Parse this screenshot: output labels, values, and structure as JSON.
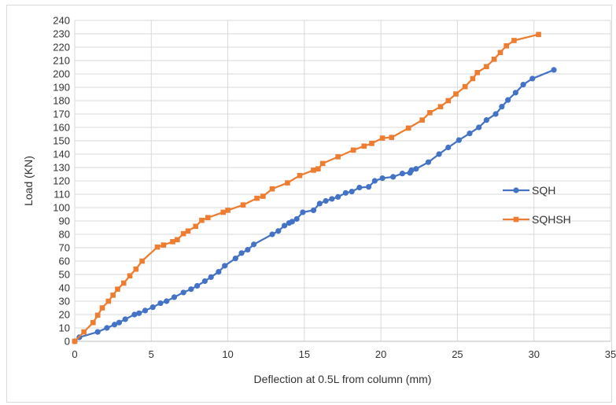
{
  "chart_data": {
    "type": "line",
    "title": "",
    "xlabel": "Deflection at 0.5L from column (mm)",
    "ylabel": "Load (KN)",
    "xlim": [
      0,
      35
    ],
    "ylim": [
      0,
      240
    ],
    "x_ticks": [
      0,
      5,
      10,
      15,
      20,
      25,
      30,
      35
    ],
    "y_ticks": [
      0,
      10,
      20,
      30,
      40,
      50,
      60,
      70,
      80,
      90,
      100,
      110,
      120,
      130,
      140,
      150,
      160,
      170,
      180,
      190,
      200,
      210,
      220,
      230,
      240
    ],
    "grid": true,
    "legend_position": "right",
    "series": [
      {
        "name": "SQH",
        "color": "#4472c4",
        "marker": "circle",
        "points": [
          [
            0,
            0
          ],
          [
            0.3,
            3
          ],
          [
            1.5,
            7
          ],
          [
            2.1,
            10
          ],
          [
            2.6,
            12.5
          ],
          [
            2.9,
            14
          ],
          [
            3.3,
            16.5
          ],
          [
            3.9,
            20
          ],
          [
            4.2,
            21
          ],
          [
            4.6,
            23
          ],
          [
            5.1,
            25.5
          ],
          [
            5.6,
            28.5
          ],
          [
            6,
            30
          ],
          [
            6.5,
            33
          ],
          [
            7.1,
            36.5
          ],
          [
            7.6,
            39
          ],
          [
            8,
            41.5
          ],
          [
            8.5,
            45
          ],
          [
            8.9,
            48
          ],
          [
            9.4,
            52
          ],
          [
            9.8,
            56.5
          ],
          [
            10.5,
            62
          ],
          [
            10.9,
            66
          ],
          [
            11.3,
            68.5
          ],
          [
            11.7,
            72.5
          ],
          [
            12.9,
            80
          ],
          [
            13.3,
            82.5
          ],
          [
            13.7,
            86.5
          ],
          [
            14,
            88.5
          ],
          [
            14.2,
            89.5
          ],
          [
            14.5,
            91.5
          ],
          [
            14.9,
            96.5
          ],
          [
            15.6,
            98
          ],
          [
            16,
            103
          ],
          [
            16.4,
            105
          ],
          [
            16.8,
            106.5
          ],
          [
            17.2,
            108
          ],
          [
            17.7,
            111
          ],
          [
            18.1,
            112
          ],
          [
            18.6,
            115
          ],
          [
            19.2,
            115.5
          ],
          [
            19.6,
            120
          ],
          [
            20.1,
            122
          ],
          [
            20.8,
            123
          ],
          [
            21.4,
            125.5
          ],
          [
            21.9,
            126
          ],
          [
            22,
            128
          ],
          [
            22.3,
            129
          ],
          [
            23.1,
            134
          ],
          [
            23.8,
            140
          ],
          [
            24.4,
            145
          ],
          [
            25.1,
            150.5
          ],
          [
            25.8,
            155.5
          ],
          [
            26.4,
            160
          ],
          [
            26.9,
            165.5
          ],
          [
            27.5,
            170
          ],
          [
            27.9,
            175.5
          ],
          [
            28.3,
            180.5
          ],
          [
            28.8,
            186
          ],
          [
            29.3,
            192
          ],
          [
            29.9,
            196.5
          ],
          [
            31.3,
            203
          ]
        ]
      },
      {
        "name": "SQHSH",
        "color": "#ed7d31",
        "marker": "square",
        "points": [
          [
            0,
            0
          ],
          [
            0.6,
            7
          ],
          [
            1.2,
            14
          ],
          [
            1.5,
            19.5
          ],
          [
            1.8,
            25
          ],
          [
            2.2,
            30
          ],
          [
            2.5,
            34.5
          ],
          [
            2.8,
            39
          ],
          [
            3.2,
            43.5
          ],
          [
            3.6,
            49
          ],
          [
            4,
            54
          ],
          [
            4.4,
            60
          ],
          [
            5.4,
            70.5
          ],
          [
            5.8,
            72
          ],
          [
            6.4,
            74.5
          ],
          [
            6.7,
            76
          ],
          [
            7.1,
            80.5
          ],
          [
            7.4,
            82.5
          ],
          [
            7.9,
            86
          ],
          [
            8.3,
            90.5
          ],
          [
            8.7,
            92.5
          ],
          [
            9.7,
            96.5
          ],
          [
            10,
            98
          ],
          [
            11,
            102
          ],
          [
            11.9,
            107
          ],
          [
            12.3,
            108.5
          ],
          [
            12.9,
            114
          ],
          [
            13.9,
            118.5
          ],
          [
            14.7,
            124
          ],
          [
            15.6,
            128
          ],
          [
            15.9,
            129
          ],
          [
            16.2,
            133
          ],
          [
            17.2,
            138
          ],
          [
            18.2,
            143
          ],
          [
            18.9,
            146
          ],
          [
            19.4,
            148
          ],
          [
            20.1,
            152
          ],
          [
            20.7,
            152.5
          ],
          [
            21.8,
            159.5
          ],
          [
            22.7,
            165.5
          ],
          [
            23.2,
            171
          ],
          [
            23.9,
            175.5
          ],
          [
            24.4,
            180
          ],
          [
            24.9,
            185
          ],
          [
            25.5,
            190.5
          ],
          [
            26,
            196.5
          ],
          [
            26.3,
            201
          ],
          [
            26.9,
            205.5
          ],
          [
            27.4,
            211
          ],
          [
            27.8,
            216
          ],
          [
            28.2,
            221
          ],
          [
            28.7,
            225
          ],
          [
            30.3,
            229.5
          ]
        ]
      }
    ]
  }
}
